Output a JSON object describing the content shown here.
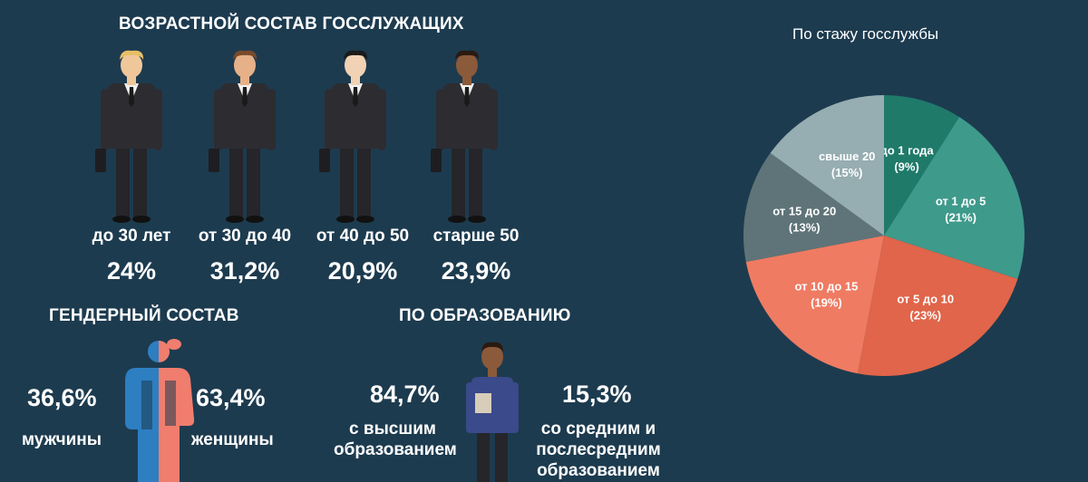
{
  "age": {
    "title": "ВОЗРАСТНОЙ СОСТАВ ГОССЛУЖАЩИХ",
    "groups": [
      {
        "label": "до 30 лет",
        "value": "24%"
      },
      {
        "label": "от 30 до 40",
        "value": "31,2%"
      },
      {
        "label": "от 40 до 50",
        "value": "20,9%"
      },
      {
        "label": "старше 50",
        "value": "23,9%"
      }
    ]
  },
  "gender": {
    "title": "ГЕНДЕРНЫЙ СОСТАВ",
    "male": {
      "value": "36,6%",
      "label": "мужчины"
    },
    "female": {
      "value": "63,4%",
      "label": "женщины"
    }
  },
  "education": {
    "title": "ПО ОБРАЗОВАНИЮ",
    "higher": {
      "value": "84,7%",
      "line1": "с высшим",
      "line2": "образованием"
    },
    "secondary": {
      "value": "15,3%",
      "line1": "со средним и",
      "line2": "послесредним",
      "line3": "образованием"
    }
  },
  "chart_data": {
    "type": "pie",
    "title": "По стажу госслужбы",
    "slices": [
      {
        "label": "до 1 года",
        "value": 9,
        "display": "(9%)",
        "color": "#1f7a6a"
      },
      {
        "label": "от 1 до 5",
        "value": 21,
        "display": "(21%)",
        "color": "#3e9a8b"
      },
      {
        "label": "от 5 до 10",
        "value": 23,
        "display": "(23%)",
        "color": "#e0654a"
      },
      {
        "label": "от 10 до 15",
        "value": 19,
        "display": "(19%)",
        "color": "#ef7b62"
      },
      {
        "label": "от 15 до 20",
        "value": 13,
        "display": "(13%)",
        "color": "#5f7478"
      },
      {
        "label": "свыше 20",
        "value": 15,
        "display": "(15%)",
        "color": "#96adb1"
      }
    ]
  },
  "colors": {
    "background": "#1d3b4f",
    "male": "#2d7fc1",
    "female": "#f07d6e",
    "suit": "#2a2a2e"
  }
}
